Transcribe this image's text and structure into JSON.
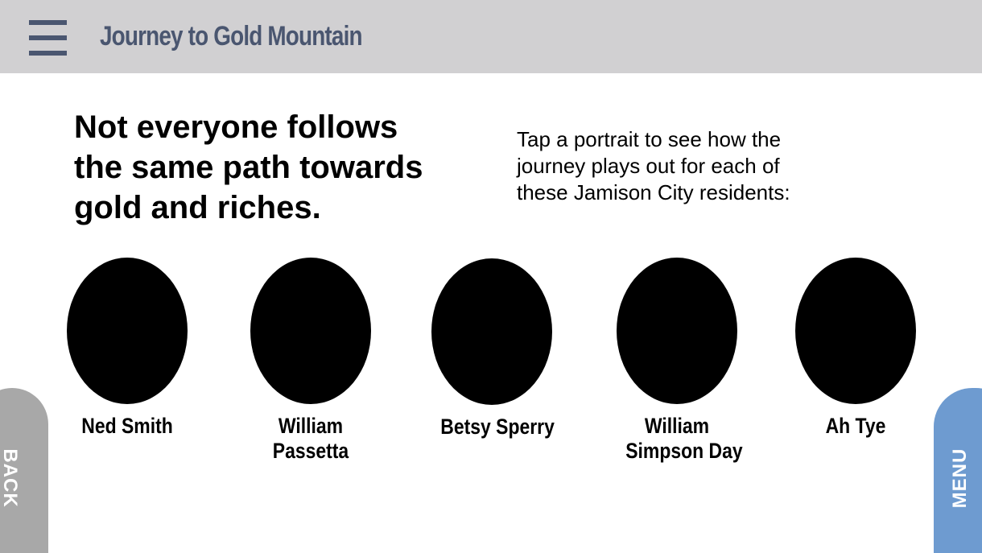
{
  "header": {
    "menu_icon": "hamburger-menu-icon",
    "title": "Journey to Gold Mountain",
    "background_color": "#d1d0d2",
    "title_color": "#4a5670"
  },
  "headline": {
    "lines": [
      "Not everyone follows",
      "the same path towards",
      "gold and riches."
    ]
  },
  "instructions": {
    "lines": [
      "Tap a portrait to see how the",
      "journey plays out for each of",
      "these Jamison City residents:"
    ]
  },
  "portraits": [
    {
      "name_lines": [
        "Ned Smith"
      ]
    },
    {
      "name_lines": [
        "William",
        "Passetta"
      ]
    },
    {
      "name_lines": [
        "Betsy Sperry"
      ]
    },
    {
      "name_lines": [
        "William",
        "Simpson Day"
      ]
    },
    {
      "name_lines": [
        "Ah Tye"
      ]
    }
  ],
  "nav": {
    "back_label": "BACK",
    "menu_label": "MENU",
    "back_color": "#a8a8a8",
    "menu_color": "#6e9bd0"
  }
}
